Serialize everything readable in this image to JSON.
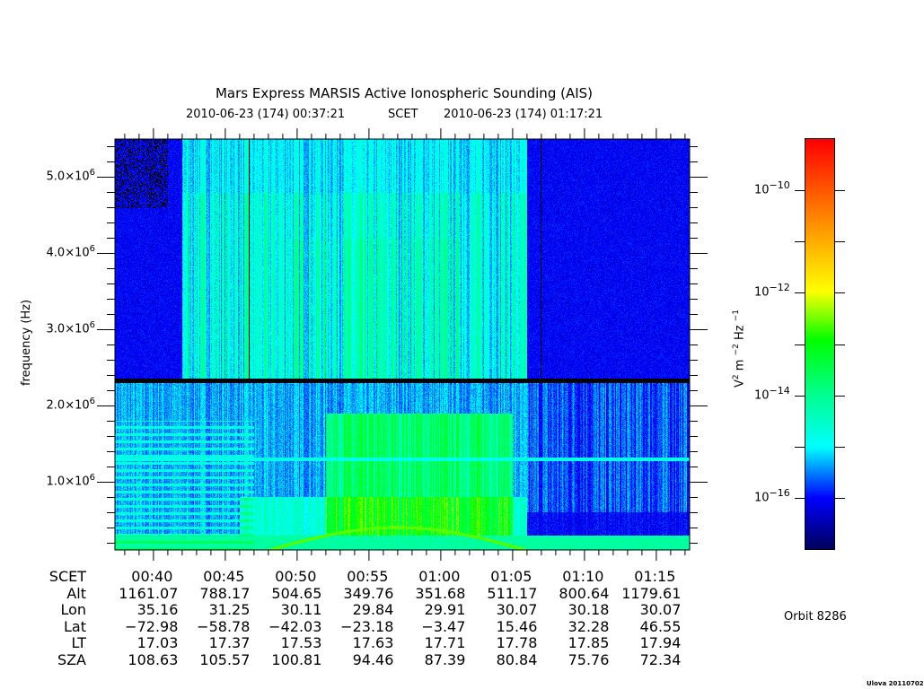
{
  "chart_data": {
    "type": "heatmap",
    "title": "Mars Express MARSIS Active Ionospheric Sounding (AIS)",
    "time_start_label": "2010-06-23 (174) 00:37:21",
    "time_center_label": "SCET",
    "time_end_label": "2010-06-23 (174) 01:17:21",
    "x_range_minutes": [
      37.35,
      77.35
    ],
    "ylabel": "frequency (Hz)",
    "ylim_hz": [
      100000,
      5500000
    ],
    "y_ticks": [
      {
        "value": 1000000,
        "mant": "1.0×10",
        "exp": "6"
      },
      {
        "value": 2000000,
        "mant": "2.0×10",
        "exp": "6"
      },
      {
        "value": 3000000,
        "mant": "3.0×10",
        "exp": "6"
      },
      {
        "value": 4000000,
        "mant": "4.0×10",
        "exp": "6"
      },
      {
        "value": 5000000,
        "mant": "5.0×10",
        "exp": "6"
      }
    ],
    "colorbar": {
      "label_base": "V",
      "label_parts": [
        "2",
        " m ",
        "−2",
        " Hz ",
        "−1"
      ],
      "log_range": [
        -17,
        -9
      ],
      "ticks": [
        {
          "value": -10,
          "base": "10",
          "exp": "−10"
        },
        {
          "value": -12,
          "base": "10",
          "exp": "−12"
        },
        {
          "value": -14,
          "base": "10",
          "exp": "−14"
        },
        {
          "value": -16,
          "base": "10",
          "exp": "−16"
        }
      ]
    },
    "features": {
      "black_band_mhz": [
        2.3,
        2.36
      ],
      "cyan_line_mhz": 1.3,
      "plasma_trace_peak_mhz": 0.4,
      "enhanced_region_minutes": [
        53,
        64
      ]
    },
    "ephemeris": {
      "columns": [
        40,
        45,
        50,
        55,
        60,
        65,
        70,
        75
      ],
      "rows": [
        {
          "label": "SCET",
          "values": [
            "00:40",
            "00:45",
            "00:50",
            "00:55",
            "01:00",
            "01:05",
            "01:10",
            "01:15"
          ]
        },
        {
          "label": "Alt",
          "values": [
            "1161.07",
            "788.17",
            "504.65",
            "349.76",
            "351.68",
            "511.17",
            "800.64",
            "1179.61"
          ]
        },
        {
          "label": "Lon",
          "values": [
            "35.16",
            "31.25",
            "30.11",
            "29.84",
            "29.91",
            "30.07",
            "30.18",
            "30.07"
          ]
        },
        {
          "label": "Lat",
          "values": [
            "−72.98",
            "−58.78",
            "−42.03",
            "−23.18",
            "−3.47",
            "15.46",
            "32.28",
            "46.55"
          ]
        },
        {
          "label": "LT",
          "values": [
            "17.03",
            "17.37",
            "17.53",
            "17.63",
            "17.71",
            "17.78",
            "17.85",
            "17.94"
          ]
        },
        {
          "label": "SZA",
          "values": [
            "108.63",
            "105.57",
            "100.81",
            "94.46",
            "87.39",
            "80.84",
            "75.76",
            "72.34"
          ]
        }
      ]
    },
    "orbit_label": "Orbit 8286",
    "credit": "Ulova 20110702"
  }
}
